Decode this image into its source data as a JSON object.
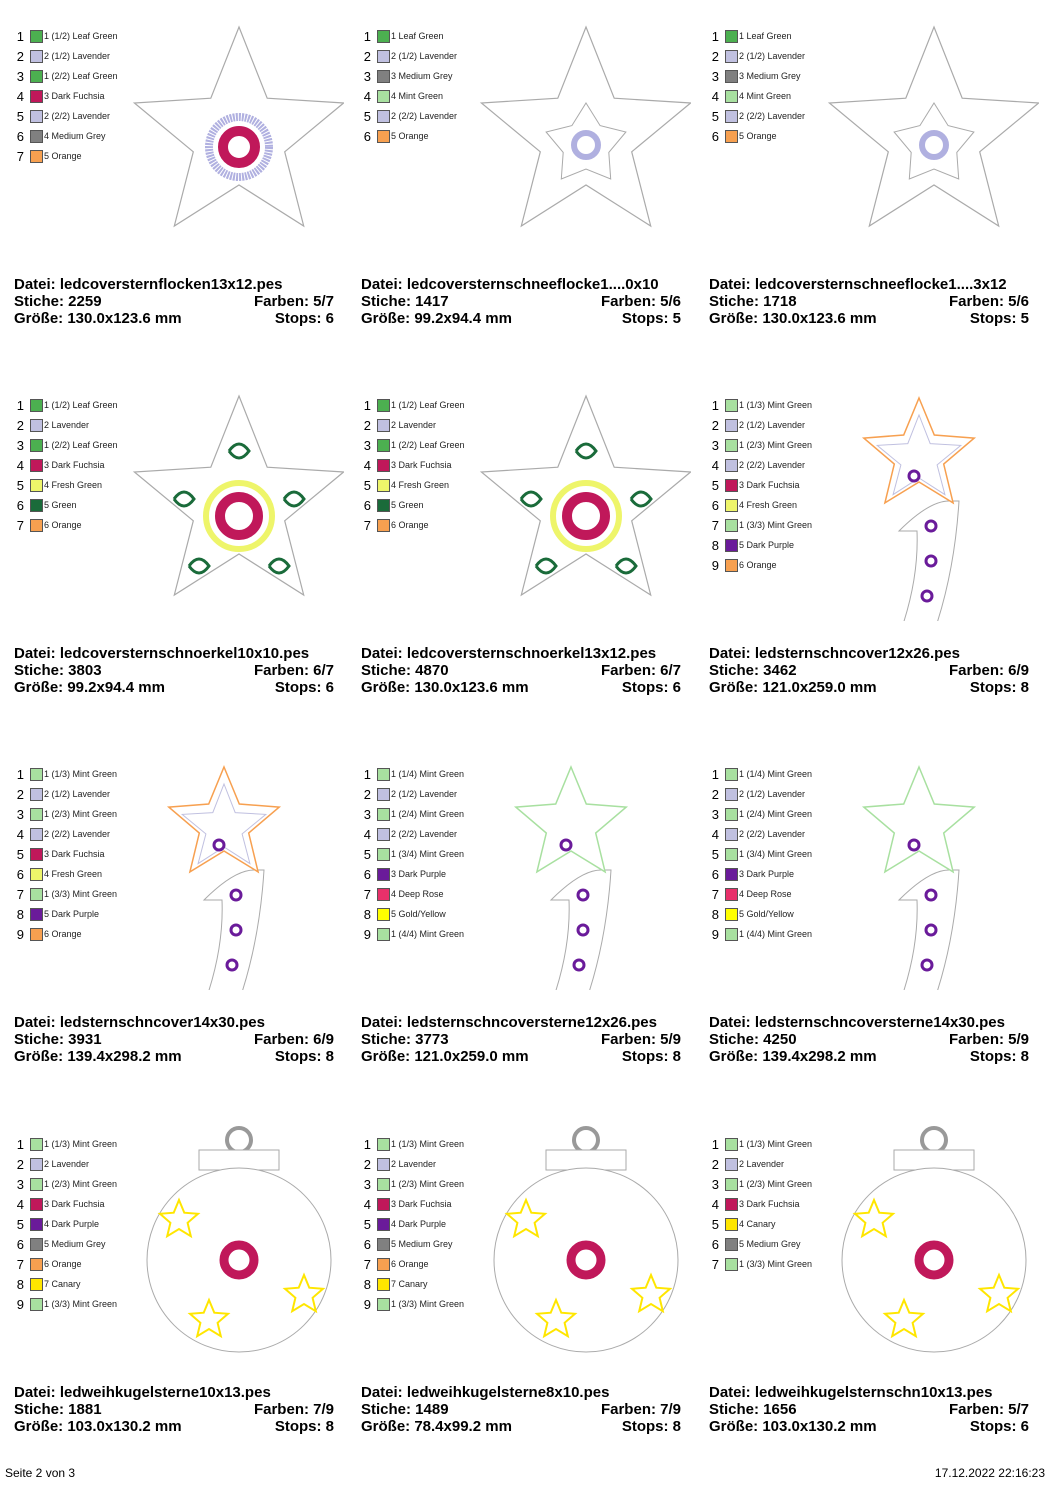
{
  "cells": [
    {
      "colors": [
        {
          "num": 1,
          "label": "1 (1/2) Leaf Green",
          "color": "#4cb050"
        },
        {
          "num": 2,
          "label": "2 (1/2) Lavender",
          "color": "#c0c0e0"
        },
        {
          "num": 3,
          "label": "1 (2/2) Leaf Green",
          "color": "#4cb050"
        },
        {
          "num": 4,
          "label": "3 Dark Fuchsia",
          "color": "#c0185a"
        },
        {
          "num": 5,
          "label": "2 (2/2) Lavender",
          "color": "#c0c0e0"
        },
        {
          "num": 6,
          "label": "4 Medium Grey",
          "color": "#808080"
        },
        {
          "num": 7,
          "label": "5 Orange",
          "color": "#f7a050"
        }
      ],
      "file": "Datei: ledcoversternflocken13x12.pes",
      "stiche": "Stiche: 2259",
      "farben": "Farben: 5/7",
      "size": "Größe: 130.0x123.6 mm",
      "stops": "Stops: 6"
    },
    {
      "colors": [
        {
          "num": 1,
          "label": "1 Leaf Green",
          "color": "#4cb050"
        },
        {
          "num": 2,
          "label": "2 (1/2) Lavender",
          "color": "#c0c0e0"
        },
        {
          "num": 3,
          "label": "3 Medium Grey",
          "color": "#808080"
        },
        {
          "num": 4,
          "label": "4 Mint Green",
          "color": "#a8e0a0"
        },
        {
          "num": 5,
          "label": "2 (2/2) Lavender",
          "color": "#c0c0e0"
        },
        {
          "num": 6,
          "label": "5 Orange",
          "color": "#f7a050"
        }
      ],
      "file": "Datei: ledcoversternschneeflocke1....0x10",
      "stiche": "Stiche: 1417",
      "farben": "Farben: 5/6",
      "size": "Größe: 99.2x94.4 mm",
      "stops": "Stops: 5"
    },
    {
      "colors": [
        {
          "num": 1,
          "label": "1 Leaf Green",
          "color": "#4cb050"
        },
        {
          "num": 2,
          "label": "2 (1/2) Lavender",
          "color": "#c0c0e0"
        },
        {
          "num": 3,
          "label": "3 Medium Grey",
          "color": "#808080"
        },
        {
          "num": 4,
          "label": "4 Mint Green",
          "color": "#a8e0a0"
        },
        {
          "num": 5,
          "label": "2 (2/2) Lavender",
          "color": "#c0c0e0"
        },
        {
          "num": 6,
          "label": "5 Orange",
          "color": "#f7a050"
        }
      ],
      "file": "Datei: ledcoversternschneeflocke1....3x12",
      "stiche": "Stiche: 1718",
      "farben": "Farben: 5/6",
      "size": "Größe: 130.0x123.6 mm",
      "stops": "Stops: 5"
    },
    {
      "colors": [
        {
          "num": 1,
          "label": "1 (1/2) Leaf Green",
          "color": "#4cb050"
        },
        {
          "num": 2,
          "label": "2 Lavender",
          "color": "#c0c0e0"
        },
        {
          "num": 3,
          "label": "1 (2/2) Leaf Green",
          "color": "#4cb050"
        },
        {
          "num": 4,
          "label": "3 Dark Fuchsia",
          "color": "#c0185a"
        },
        {
          "num": 5,
          "label": "4 Fresh Green",
          "color": "#eef56a"
        },
        {
          "num": 6,
          "label": "5 Green",
          "color": "#1a6b3a"
        },
        {
          "num": 7,
          "label": "6 Orange",
          "color": "#f7a050"
        }
      ],
      "file": "Datei: ledcoversternschnoerkel10x10.pes",
      "stiche": "Stiche: 3803",
      "farben": "Farben: 6/7",
      "size": "Größe: 99.2x94.4 mm",
      "stops": "Stops: 6"
    },
    {
      "colors": [
        {
          "num": 1,
          "label": "1 (1/2) Leaf Green",
          "color": "#4cb050"
        },
        {
          "num": 2,
          "label": "2 Lavender",
          "color": "#c0c0e0"
        },
        {
          "num": 3,
          "label": "1 (2/2) Leaf Green",
          "color": "#4cb050"
        },
        {
          "num": 4,
          "label": "3 Dark Fuchsia",
          "color": "#c0185a"
        },
        {
          "num": 5,
          "label": "4 Fresh Green",
          "color": "#eef56a"
        },
        {
          "num": 6,
          "label": "5 Green",
          "color": "#1a6b3a"
        },
        {
          "num": 7,
          "label": "6 Orange",
          "color": "#f7a050"
        }
      ],
      "file": "Datei: ledcoversternschnoerkel13x12.pes",
      "stiche": "Stiche: 4870",
      "farben": "Farben: 6/7",
      "size": "Größe: 130.0x123.6 mm",
      "stops": "Stops: 6"
    },
    {
      "colors": [
        {
          "num": 1,
          "label": "1 (1/3) Mint Green",
          "color": "#a8e0a0"
        },
        {
          "num": 2,
          "label": "2 (1/2) Lavender",
          "color": "#c0c0e0"
        },
        {
          "num": 3,
          "label": "1 (2/3) Mint Green",
          "color": "#a8e0a0"
        },
        {
          "num": 4,
          "label": "2 (2/2) Lavender",
          "color": "#c0c0e0"
        },
        {
          "num": 5,
          "label": "3 Dark Fuchsia",
          "color": "#c0185a"
        },
        {
          "num": 6,
          "label": "4 Fresh Green",
          "color": "#eef56a"
        },
        {
          "num": 7,
          "label": "1 (3/3) Mint Green",
          "color": "#a8e0a0"
        },
        {
          "num": 8,
          "label": "5 Dark Purple",
          "color": "#6a1b9a"
        },
        {
          "num": 9,
          "label": "6 Orange",
          "color": "#f7a050"
        }
      ],
      "file": "Datei: ledsternschncover12x26.pes",
      "stiche": "Stiche: 3462",
      "farben": "Farben: 6/9",
      "size": "Größe: 121.0x259.0 mm",
      "stops": "Stops: 8"
    },
    {
      "colors": [
        {
          "num": 1,
          "label": "1 (1/3) Mint Green",
          "color": "#a8e0a0"
        },
        {
          "num": 2,
          "label": "2 (1/2) Lavender",
          "color": "#c0c0e0"
        },
        {
          "num": 3,
          "label": "1 (2/3) Mint Green",
          "color": "#a8e0a0"
        },
        {
          "num": 4,
          "label": "2 (2/2) Lavender",
          "color": "#c0c0e0"
        },
        {
          "num": 5,
          "label": "3 Dark Fuchsia",
          "color": "#c0185a"
        },
        {
          "num": 6,
          "label": "4 Fresh Green",
          "color": "#eef56a"
        },
        {
          "num": 7,
          "label": "1 (3/3) Mint Green",
          "color": "#a8e0a0"
        },
        {
          "num": 8,
          "label": "5 Dark Purple",
          "color": "#6a1b9a"
        },
        {
          "num": 9,
          "label": "6 Orange",
          "color": "#f7a050"
        }
      ],
      "file": "Datei: ledsternschncover14x30.pes",
      "stiche": "Stiche: 3931",
      "farben": "Farben: 6/9",
      "size": "Größe: 139.4x298.2 mm",
      "stops": "Stops: 8"
    },
    {
      "colors": [
        {
          "num": 1,
          "label": "1 (1/4) Mint Green",
          "color": "#a8e0a0"
        },
        {
          "num": 2,
          "label": "2 (1/2) Lavender",
          "color": "#c0c0e0"
        },
        {
          "num": 3,
          "label": "1 (2/4) Mint Green",
          "color": "#a8e0a0"
        },
        {
          "num": 4,
          "label": "2 (2/2) Lavender",
          "color": "#c0c0e0"
        },
        {
          "num": 5,
          "label": "1 (3/4) Mint Green",
          "color": "#a8e0a0"
        },
        {
          "num": 6,
          "label": "3 Dark Purple",
          "color": "#6a1b9a"
        },
        {
          "num": 7,
          "label": "4 Deep Rose",
          "color": "#e8306a"
        },
        {
          "num": 8,
          "label": "5 Gold/Yellow",
          "color": "#ffff00"
        },
        {
          "num": 9,
          "label": "1 (4/4) Mint Green",
          "color": "#a8e0a0"
        }
      ],
      "file": "Datei: ledsternschncoversterne12x26.pes",
      "stiche": "Stiche: 3773",
      "farben": "Farben: 5/9",
      "size": "Größe: 121.0x259.0 mm",
      "stops": "Stops: 8"
    },
    {
      "colors": [
        {
          "num": 1,
          "label": "1 (1/4) Mint Green",
          "color": "#a8e0a0"
        },
        {
          "num": 2,
          "label": "2 (1/2) Lavender",
          "color": "#c0c0e0"
        },
        {
          "num": 3,
          "label": "1 (2/4) Mint Green",
          "color": "#a8e0a0"
        },
        {
          "num": 4,
          "label": "2 (2/2) Lavender",
          "color": "#c0c0e0"
        },
        {
          "num": 5,
          "label": "1 (3/4) Mint Green",
          "color": "#a8e0a0"
        },
        {
          "num": 6,
          "label": "3 Dark Purple",
          "color": "#6a1b9a"
        },
        {
          "num": 7,
          "label": "4 Deep Rose",
          "color": "#e8306a"
        },
        {
          "num": 8,
          "label": "5 Gold/Yellow",
          "color": "#ffff00"
        },
        {
          "num": 9,
          "label": "1 (4/4) Mint Green",
          "color": "#a8e0a0"
        }
      ],
      "file": "Datei: ledsternschncoversterne14x30.pes",
      "stiche": "Stiche: 4250",
      "farben": "Farben: 5/9",
      "size": "Größe: 139.4x298.2 mm",
      "stops": "Stops: 8"
    },
    {
      "colors": [
        {
          "num": 1,
          "label": "1 (1/3) Mint Green",
          "color": "#a8e0a0"
        },
        {
          "num": 2,
          "label": "2 Lavender",
          "color": "#c0c0e0"
        },
        {
          "num": 3,
          "label": "1 (2/3) Mint Green",
          "color": "#a8e0a0"
        },
        {
          "num": 4,
          "label": "3 Dark Fuchsia",
          "color": "#c0185a"
        },
        {
          "num": 5,
          "label": "4 Dark Purple",
          "color": "#6a1b9a"
        },
        {
          "num": 6,
          "label": "5 Medium Grey",
          "color": "#808080"
        },
        {
          "num": 7,
          "label": "6 Orange",
          "color": "#f7a050"
        },
        {
          "num": 8,
          "label": "7 Canary",
          "color": "#ffe600"
        },
        {
          "num": 9,
          "label": "1 (3/3) Mint Green",
          "color": "#a8e0a0"
        }
      ],
      "file": "Datei: ledweihkugelsterne10x13.pes",
      "stiche": "Stiche: 1881",
      "farben": "Farben: 7/9",
      "size": "Größe: 103.0x130.2 mm",
      "stops": "Stops: 8"
    },
    {
      "colors": [
        {
          "num": 1,
          "label": "1 (1/3) Mint Green",
          "color": "#a8e0a0"
        },
        {
          "num": 2,
          "label": "2 Lavender",
          "color": "#c0c0e0"
        },
        {
          "num": 3,
          "label": "1 (2/3) Mint Green",
          "color": "#a8e0a0"
        },
        {
          "num": 4,
          "label": "3 Dark Fuchsia",
          "color": "#c0185a"
        },
        {
          "num": 5,
          "label": "4 Dark Purple",
          "color": "#6a1b9a"
        },
        {
          "num": 6,
          "label": "5 Medium Grey",
          "color": "#808080"
        },
        {
          "num": 7,
          "label": "6 Orange",
          "color": "#f7a050"
        },
        {
          "num": 8,
          "label": "7 Canary",
          "color": "#ffe600"
        },
        {
          "num": 9,
          "label": "1 (3/3) Mint Green",
          "color": "#a8e0a0"
        }
      ],
      "file": "Datei: ledweihkugelsterne8x10.pes",
      "stiche": "Stiche: 1489",
      "farben": "Farben: 7/9",
      "size": "Größe: 78.4x99.2 mm",
      "stops": "Stops: 8"
    },
    {
      "colors": [
        {
          "num": 1,
          "label": "1 (1/3) Mint Green",
          "color": "#a8e0a0"
        },
        {
          "num": 2,
          "label": "2 Lavender",
          "color": "#c0c0e0"
        },
        {
          "num": 3,
          "label": "1 (2/3) Mint Green",
          "color": "#a8e0a0"
        },
        {
          "num": 4,
          "label": "3 Dark Fuchsia",
          "color": "#c0185a"
        },
        {
          "num": 5,
          "label": "4 Canary",
          "color": "#ffe600"
        },
        {
          "num": 6,
          "label": "5 Medium Grey",
          "color": "#808080"
        },
        {
          "num": 7,
          "label": "1 (3/3) Mint Green",
          "color": "#a8e0a0"
        }
      ],
      "file": "Datei: ledweihkugelsternschn10x13.pes",
      "stiche": "Stiche: 1656",
      "farben": "Farben: 5/7",
      "size": "Größe: 103.0x130.2 mm",
      "stops": "Stops: 6"
    }
  ],
  "footer": {
    "page": "Seite 2 von 3",
    "timestamp": "17.12.2022 22:16:23"
  }
}
